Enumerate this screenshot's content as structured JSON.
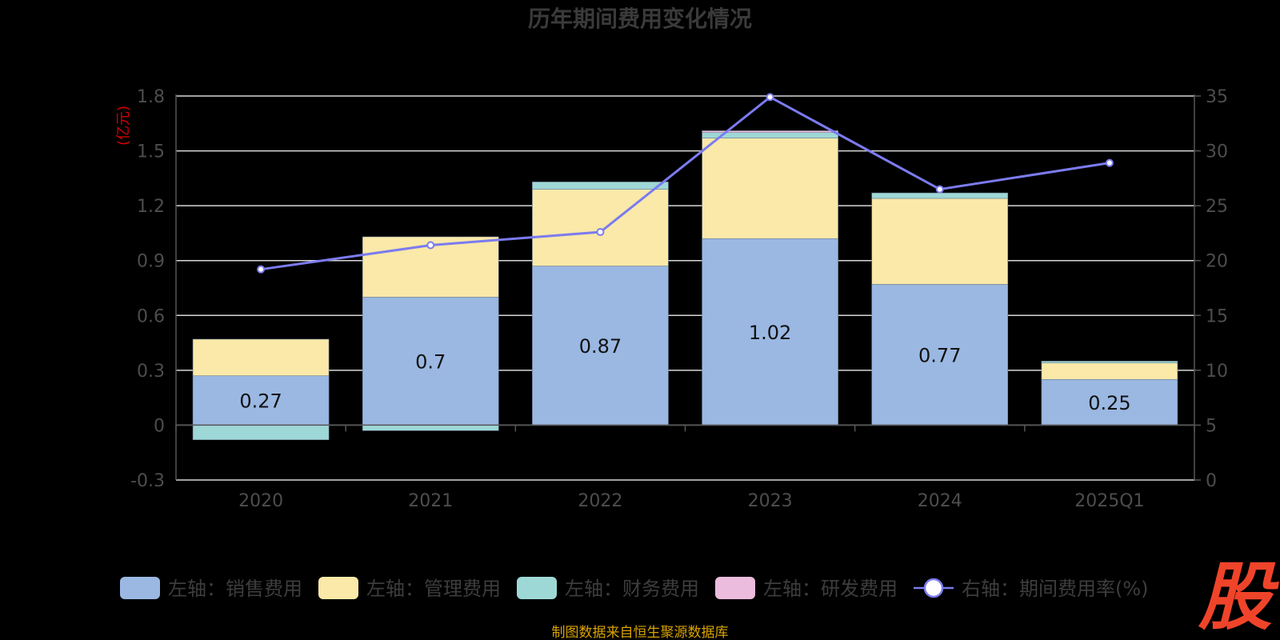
{
  "chart_data": {
    "type": "bar",
    "title": "历年期间费用变化情况",
    "categories": [
      "2020",
      "2021",
      "2022",
      "2023",
      "2024",
      "2025Q1"
    ],
    "left_axis": {
      "unit": "(亿元)",
      "ylim": [
        -0.3,
        1.8
      ],
      "ticks": [
        "-0.3",
        "0",
        "0.3",
        "0.6",
        "0.9",
        "1.2",
        "1.5",
        "1.8"
      ]
    },
    "right_axis": {
      "unit": "(%)",
      "ylim": [
        0,
        35
      ],
      "ticks": [
        "0",
        "5",
        "10",
        "15",
        "20",
        "25",
        "30",
        "35"
      ]
    },
    "series": [
      {
        "name": "左轴：销售费用",
        "kind": "bar",
        "color": "#9ab8e2",
        "values": [
          0.27,
          0.7,
          0.87,
          1.02,
          0.77,
          0.25
        ],
        "labels": [
          "0.27",
          "0.7",
          "0.87",
          "1.02",
          "0.77",
          "0.25"
        ]
      },
      {
        "name": "左轴：管理费用",
        "kind": "bar",
        "color": "#fae9a8",
        "values": [
          0.2,
          0.33,
          0.42,
          0.55,
          0.47,
          0.09
        ]
      },
      {
        "name": "左轴：财务费用",
        "kind": "bar",
        "color": "#9ed8d6",
        "values": [
          -0.08,
          -0.03,
          0.04,
          0.03,
          0.03,
          0.01
        ]
      },
      {
        "name": "左轴：研发费用",
        "kind": "bar",
        "color": "#ebbcde",
        "values": [
          0,
          0,
          0,
          0.01,
          0,
          0
        ]
      },
      {
        "name": "右轴：期间费用率(%)",
        "kind": "line",
        "color": "#7b7bf0",
        "values": [
          19.2,
          21.4,
          22.6,
          34.9,
          26.5,
          28.9
        ]
      }
    ],
    "grid": true,
    "legend_position": "bottom"
  },
  "footer": {
    "source": "制图数据来自恒生聚源数据库",
    "logo": "股"
  }
}
